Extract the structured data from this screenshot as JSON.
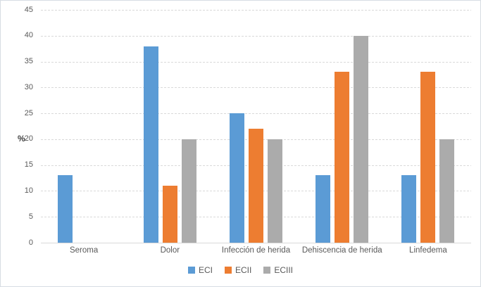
{
  "chart_data": {
    "type": "bar",
    "title": "",
    "xlabel": "",
    "ylabel": "%",
    "categories": [
      "Seroma",
      "Dolor",
      "Infección de herida",
      "Dehiscencia de herida",
      "Linfedema"
    ],
    "series": [
      {
        "name": "ECI",
        "color": "#5B9BD5",
        "texture": "solid",
        "values": [
          13,
          38,
          25,
          13,
          13
        ]
      },
      {
        "name": "ECII",
        "color": "#ED7D31",
        "texture": "solid",
        "values": [
          0,
          11,
          22,
          33,
          33
        ]
      },
      {
        "name": "ECIII",
        "color": "#A5A5A5",
        "texture": "dotted",
        "values": [
          0,
          20,
          20,
          40,
          20
        ]
      }
    ],
    "ylim": [
      0,
      45
    ],
    "yticks": [
      0,
      5,
      10,
      15,
      20,
      25,
      30,
      35,
      40,
      45
    ],
    "grid": true,
    "gridline_style": "dashed",
    "gridline_color": "#D9D9D9",
    "axis_text_color": "#595959",
    "legend_position": "bottom"
  }
}
